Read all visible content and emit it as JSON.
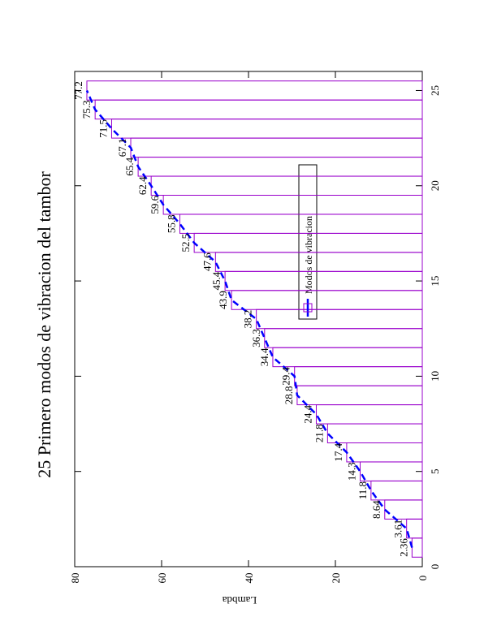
{
  "chart_data": {
    "type": "bar",
    "title": "25 Primero modos de vibracion del tambor",
    "y_label": "Lambda",
    "legend_label": "Modos de vibracion",
    "x": [
      1,
      2,
      3,
      4,
      5,
      6,
      7,
      8,
      9,
      10,
      11,
      12,
      13,
      14,
      15,
      16,
      17,
      18,
      19,
      20,
      21,
      22,
      23,
      24,
      25
    ],
    "values": [
      2.36,
      3.61,
      8.64,
      11.8,
      14.3,
      17.4,
      21.8,
      24.4,
      28.8,
      29.4,
      34.4,
      36.3,
      38.2,
      43.9,
      45.4,
      47.6,
      52.5,
      55.8,
      59.6,
      62.4,
      65.4,
      67.1,
      71.5,
      75.3,
      77.2
    ],
    "bar_color": "#9900cc",
    "line_color": "#0000ff",
    "xlim": [
      0,
      26
    ],
    "xticks": [
      0,
      5,
      10,
      15,
      20,
      25
    ],
    "ylim": [
      0,
      80
    ],
    "yticks": [
      0,
      20,
      40,
      60,
      80
    ]
  }
}
